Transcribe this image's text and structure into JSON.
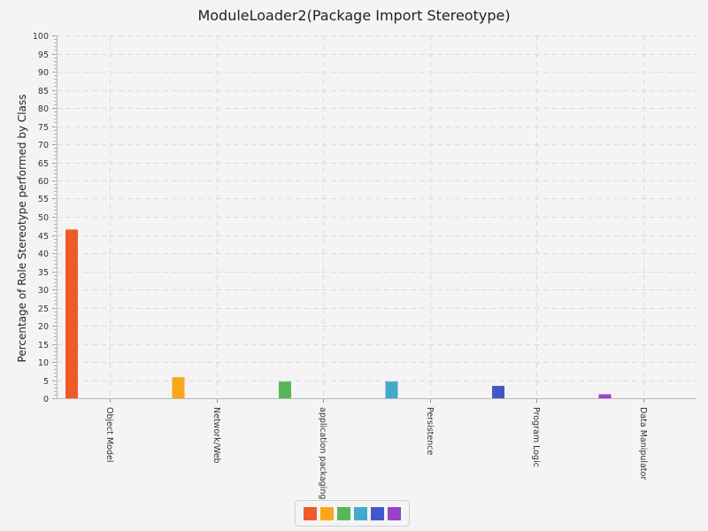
{
  "chart_data": {
    "type": "bar",
    "title": "ModuleLoader2(Package Import Stereotype)",
    "xlabel": "",
    "ylabel": "Percentage of Role Stereotype performed by Class",
    "ylim": [
      0,
      100
    ],
    "ytick_step": 5,
    "grid": true,
    "legend": "bottom",
    "categories": [
      "Object Model",
      "Network/Web",
      "application packaging",
      "Persistence",
      "Program Logic",
      "Data Manipulator"
    ],
    "values": [
      46.5,
      5.8,
      4.6,
      4.6,
      3.4,
      1.1
    ],
    "colors": [
      "#f05a28",
      "#fba71b",
      "#57b757",
      "#41a9c9",
      "#4258c9",
      "#9a42c8"
    ]
  }
}
